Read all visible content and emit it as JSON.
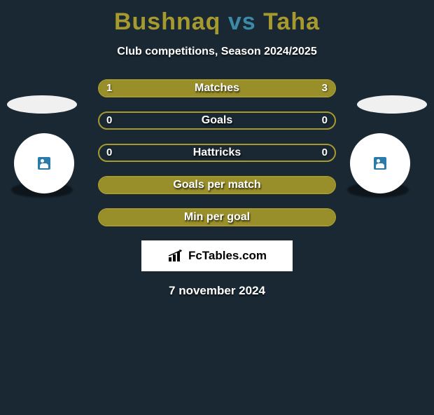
{
  "title": {
    "player1": "Bushnaq",
    "vs": "vs",
    "player2": "Taha",
    "color1": "#a69a2f",
    "color_vs": "#3a8aa8",
    "color2": "#a69a2f",
    "fontsize": 34
  },
  "subtitle": "Club competitions, Season 2024/2025",
  "colors": {
    "background": "#1a2833",
    "bar_fill": "#998f2a",
    "bar_border": "#a69a2f",
    "text_white": "#ffffff"
  },
  "bars": [
    {
      "label": "Matches",
      "left": "1",
      "right": "3",
      "left_pct": 25,
      "right_pct": 75,
      "show_values": true
    },
    {
      "label": "Goals",
      "left": "0",
      "right": "0",
      "left_pct": 0,
      "right_pct": 0,
      "show_values": true
    },
    {
      "label": "Hattricks",
      "left": "0",
      "right": "0",
      "left_pct": 0,
      "right_pct": 0,
      "show_values": true
    },
    {
      "label": "Goals per match",
      "left": "",
      "right": "",
      "left_pct": 100,
      "right_pct": 0,
      "show_values": false
    },
    {
      "label": "Min per goal",
      "left": "",
      "right": "",
      "left_pct": 100,
      "right_pct": 0,
      "show_values": false
    }
  ],
  "brand": "FcTables.com",
  "date": "7 november 2024"
}
